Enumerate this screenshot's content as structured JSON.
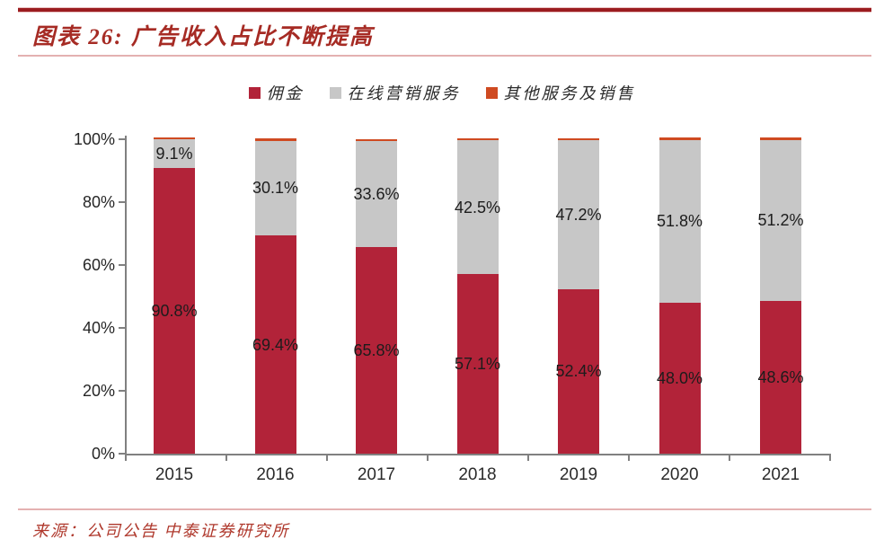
{
  "header": {
    "title": "图表 26:  广告收入占比不断提高"
  },
  "legend": {
    "items": [
      {
        "key": "commission",
        "label": "佣金",
        "color": "#b22339"
      },
      {
        "key": "online-marketing",
        "label": "在线营销服务",
        "color": "#c7c7c7"
      },
      {
        "key": "other-services",
        "label": "其他服务及销售",
        "color": "#cf4a21"
      }
    ]
  },
  "chart_data": {
    "type": "bar",
    "stacked": true,
    "title": "广告收入占比不断提高",
    "xlabel": "",
    "ylabel": "",
    "categories": [
      "2015",
      "2016",
      "2017",
      "2018",
      "2019",
      "2020",
      "2021"
    ],
    "series": [
      {
        "name": "佣金",
        "key": "commission",
        "color": "#b22339",
        "values": [
          90.8,
          69.4,
          65.8,
          57.1,
          52.4,
          48.0,
          48.6
        ],
        "labels": [
          "90.8%",
          "69.4%",
          "65.8%",
          "57.1%",
          "52.4%",
          "48.0%",
          "48.6%"
        ]
      },
      {
        "name": "在线营销服务",
        "key": "online-marketing",
        "color": "#c7c7c7",
        "values": [
          9.1,
          30.1,
          33.6,
          42.5,
          47.2,
          51.8,
          51.2
        ],
        "labels": [
          "9.1%",
          "30.1%",
          "33.6%",
          "42.5%",
          "47.2%",
          "51.8%",
          "51.2%"
        ]
      },
      {
        "name": "其他服务及销售",
        "key": "other-services",
        "color": "#cf4a21",
        "values": [
          0.1,
          0.5,
          0.6,
          0.4,
          0.4,
          0.2,
          0.2
        ],
        "labels": null
      }
    ],
    "ylim": [
      0,
      100
    ],
    "yticks": [
      "0%",
      "20%",
      "40%",
      "60%",
      "80%",
      "100%"
    ],
    "grid": false,
    "legend_position": "top"
  },
  "footer": {
    "source": "来源：公司公告  中泰证券研究所"
  }
}
